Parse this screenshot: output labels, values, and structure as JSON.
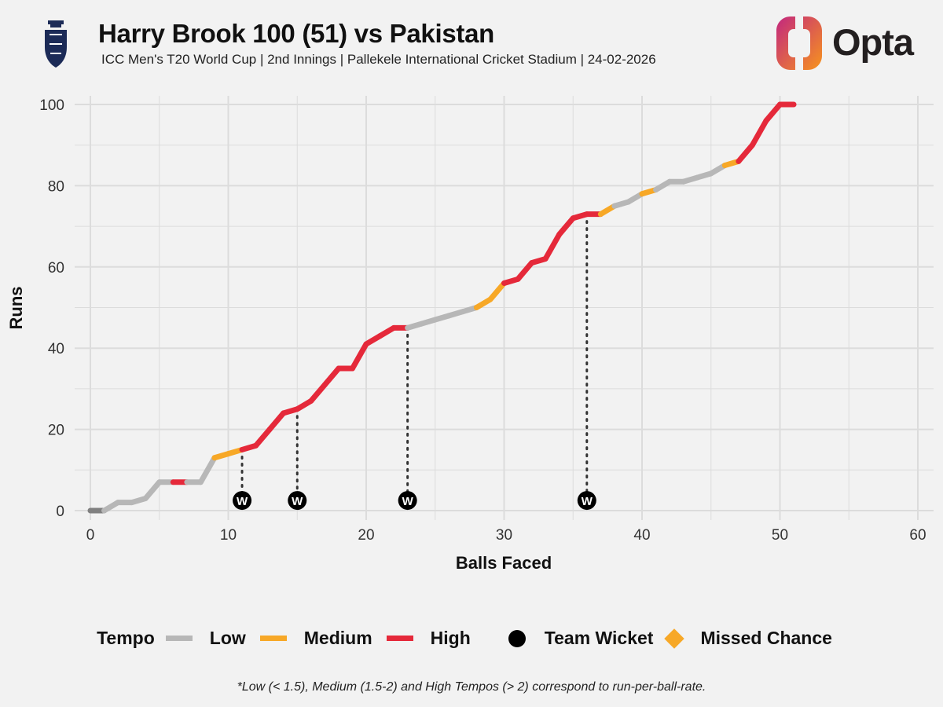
{
  "header": {
    "title": "Harry Brook 100 (51) vs Pakistan",
    "subtitle": "ICC Men's T20 World Cup | 2nd Innings | Pallekele International Cricket Stadium | 24-02-2026",
    "logo_text": "Opta"
  },
  "legend": {
    "title": "Tempo",
    "low": "Low",
    "medium": "Medium",
    "high": "High",
    "wicket": "Team Wicket",
    "missed": "Missed Chance"
  },
  "footnote": "*Low (< 1.5), Medium (1.5-2) and High Tempos (> 2) correspond to run-per-ball-rate.",
  "colors": {
    "low": "#b7b7b7",
    "medium": "#f7a827",
    "high": "#e5293a",
    "start": "#808080",
    "wicket": "#000000",
    "grid": "#dcdcdc",
    "opta_gradient_start": "#c2277f",
    "opta_gradient_end": "#f7941d"
  },
  "chart_data": {
    "type": "line",
    "title": "Harry Brook 100 (51) vs Pakistan",
    "xlabel": "Balls Faced",
    "ylabel": "Runs",
    "xlim": [
      0,
      60
    ],
    "ylim": [
      0,
      100
    ],
    "xticks": [
      0,
      10,
      20,
      30,
      40,
      50,
      60
    ],
    "yticks": [
      0,
      20,
      40,
      60,
      80,
      100
    ],
    "grid": true,
    "legend_position": "bottom",
    "series": [
      {
        "name": "Cumulative runs",
        "x": [
          0,
          1,
          2,
          3,
          4,
          5,
          6,
          7,
          8,
          9,
          10,
          11,
          12,
          13,
          14,
          15,
          16,
          17,
          18,
          19,
          20,
          21,
          22,
          23,
          24,
          25,
          26,
          27,
          28,
          29,
          30,
          31,
          32,
          33,
          34,
          35,
          36,
          37,
          38,
          39,
          40,
          41,
          42,
          43,
          44,
          45,
          46,
          47,
          48,
          49,
          50,
          51
        ],
        "y": [
          0,
          0,
          2,
          2,
          3,
          7,
          7,
          7,
          7,
          13,
          14,
          15,
          16,
          20,
          24,
          25,
          27,
          31,
          35,
          35,
          41,
          43,
          45,
          45,
          46,
          47,
          48,
          49,
          50,
          52,
          56,
          57,
          61,
          62,
          68,
          72,
          73,
          73,
          75,
          76,
          78,
          79,
          81,
          81,
          82,
          83,
          85,
          86,
          90,
          96,
          100,
          100
        ],
        "tempo": [
          "start",
          "low",
          "low",
          "low",
          "low",
          "low",
          "low",
          "high",
          "low",
          "low",
          "medium",
          "medium",
          "high",
          "high",
          "high",
          "high",
          "high",
          "high",
          "high",
          "high",
          "high",
          "high",
          "high",
          "high",
          "low",
          "low",
          "low",
          "low",
          "low",
          "medium",
          "medium",
          "high",
          "high",
          "high",
          "high",
          "high",
          "high",
          "high",
          "medium",
          "low",
          "low",
          "medium",
          "low",
          "low",
          "low",
          "low",
          "low",
          "medium",
          "high",
          "high",
          "high",
          "high"
        ]
      }
    ],
    "wickets": [
      {
        "ball": 11,
        "runs": 15,
        "label": "W"
      },
      {
        "ball": 15,
        "runs": 25,
        "label": "W"
      },
      {
        "ball": 23,
        "runs": 45,
        "label": "W"
      },
      {
        "ball": 36,
        "runs": 73,
        "label": "W"
      }
    ],
    "missed_chances": []
  }
}
